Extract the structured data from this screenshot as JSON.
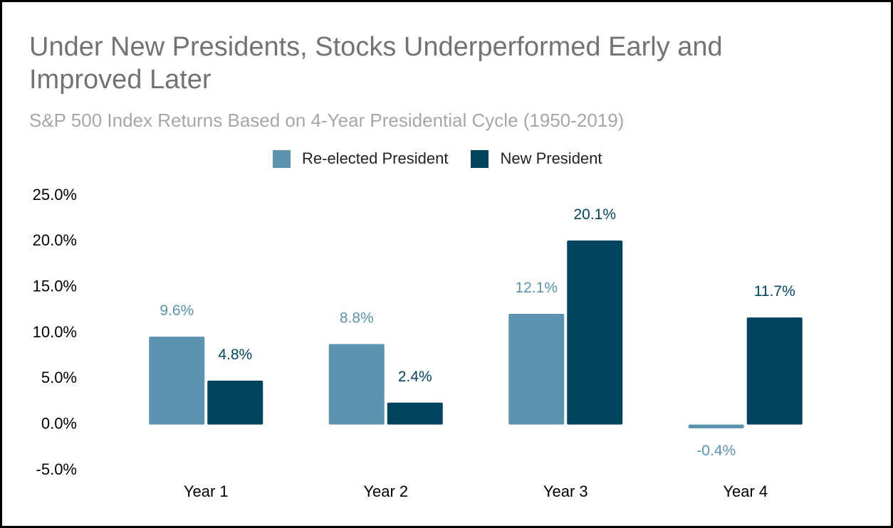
{
  "chart_data": {
    "type": "bar",
    "title": "Under New Presidents, Stocks Underperformed Early and Improved Later",
    "subtitle": "S&P 500 Index Returns Based on 4-Year Presidential Cycle (1950-2019)",
    "categories": [
      "Year 1",
      "Year 2",
      "Year 3",
      "Year 4"
    ],
    "series": [
      {
        "name": "Re-elected President",
        "color": "#5b93b0",
        "values": [
          9.6,
          8.8,
          12.1,
          -0.4
        ],
        "labels": [
          "9.6%",
          "8.8%",
          "12.1%",
          "-0.4%"
        ]
      },
      {
        "name": "New President",
        "color": "#02435f",
        "values": [
          4.8,
          2.4,
          20.1,
          11.7
        ],
        "labels": [
          "4.8%",
          "2.4%",
          "20.1%",
          "11.7%"
        ]
      }
    ],
    "ylim": [
      -5,
      25
    ],
    "yticks": [
      25,
      20,
      15,
      10,
      5,
      0,
      -5
    ],
    "ytick_labels": [
      "25.0%",
      "20.0%",
      "15.0%",
      "10.0%",
      "5.0%",
      "0.0%",
      "-5.0%"
    ],
    "grid": false,
    "legend_position": "top-center"
  }
}
